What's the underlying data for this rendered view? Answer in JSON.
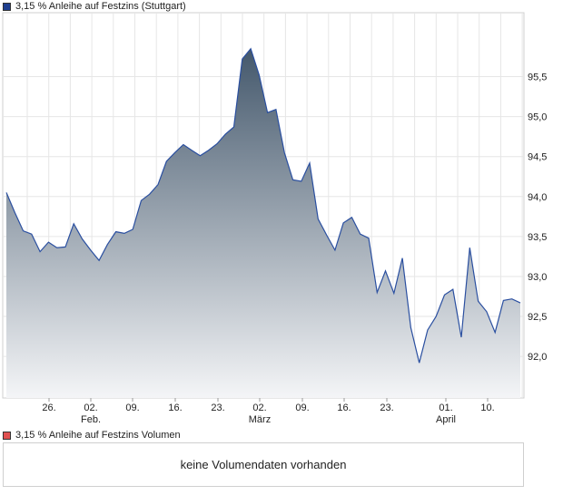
{
  "legend": {
    "price_label": "3,15 % Anleihe auf Festzins (Stuttgart)",
    "price_color": "#1f3f8f",
    "volume_label": "3,15 % Anleihe auf Festzins Volumen",
    "volume_color": "#e05050"
  },
  "volume": {
    "message": "keine Volumendaten vorhanden"
  },
  "chart_data": {
    "type": "area",
    "title": "",
    "xlabel": "",
    "ylabel": "",
    "ylim": [
      91.48,
      96.3
    ],
    "y_ticks": [
      "92,0",
      "92,5",
      "93,0",
      "93,5",
      "94,0",
      "94,5",
      "95,0",
      "95,5"
    ],
    "y_tick_values": [
      92.0,
      92.5,
      93.0,
      93.5,
      94.0,
      94.5,
      95.0,
      95.5
    ],
    "x_tick_labels": [
      "26.",
      "02.",
      "09.",
      "16.",
      "23.",
      "02.",
      "09.",
      "16.",
      "23.",
      "01.",
      "10."
    ],
    "x_month_labels": [
      "Feb.",
      "März",
      "April"
    ],
    "grid": true,
    "line_color": "#2a4fa0",
    "fill_top_color": "#44586c",
    "fill_bottom_color": "#f4f5f7",
    "series": [
      {
        "values": [
          94.05,
          93.8,
          93.57,
          93.53,
          93.31,
          93.43,
          93.36,
          93.37,
          93.66,
          93.47,
          93.33,
          93.2,
          93.4,
          93.56,
          93.54,
          93.59,
          93.95,
          94.03,
          94.15,
          94.44,
          94.55,
          94.65,
          94.58,
          94.51,
          94.58,
          94.66,
          94.78,
          94.87,
          95.72,
          95.85,
          95.52,
          95.05,
          95.09,
          94.55,
          94.21,
          94.19,
          94.42,
          93.72,
          93.52,
          93.33,
          93.67,
          93.74,
          93.53,
          93.48,
          92.8,
          93.07,
          92.79,
          93.23,
          92.36,
          91.92,
          92.33,
          92.5,
          92.77,
          92.84,
          92.24,
          93.36,
          92.69,
          92.56,
          92.3,
          92.7,
          92.72,
          92.67
        ]
      }
    ]
  }
}
